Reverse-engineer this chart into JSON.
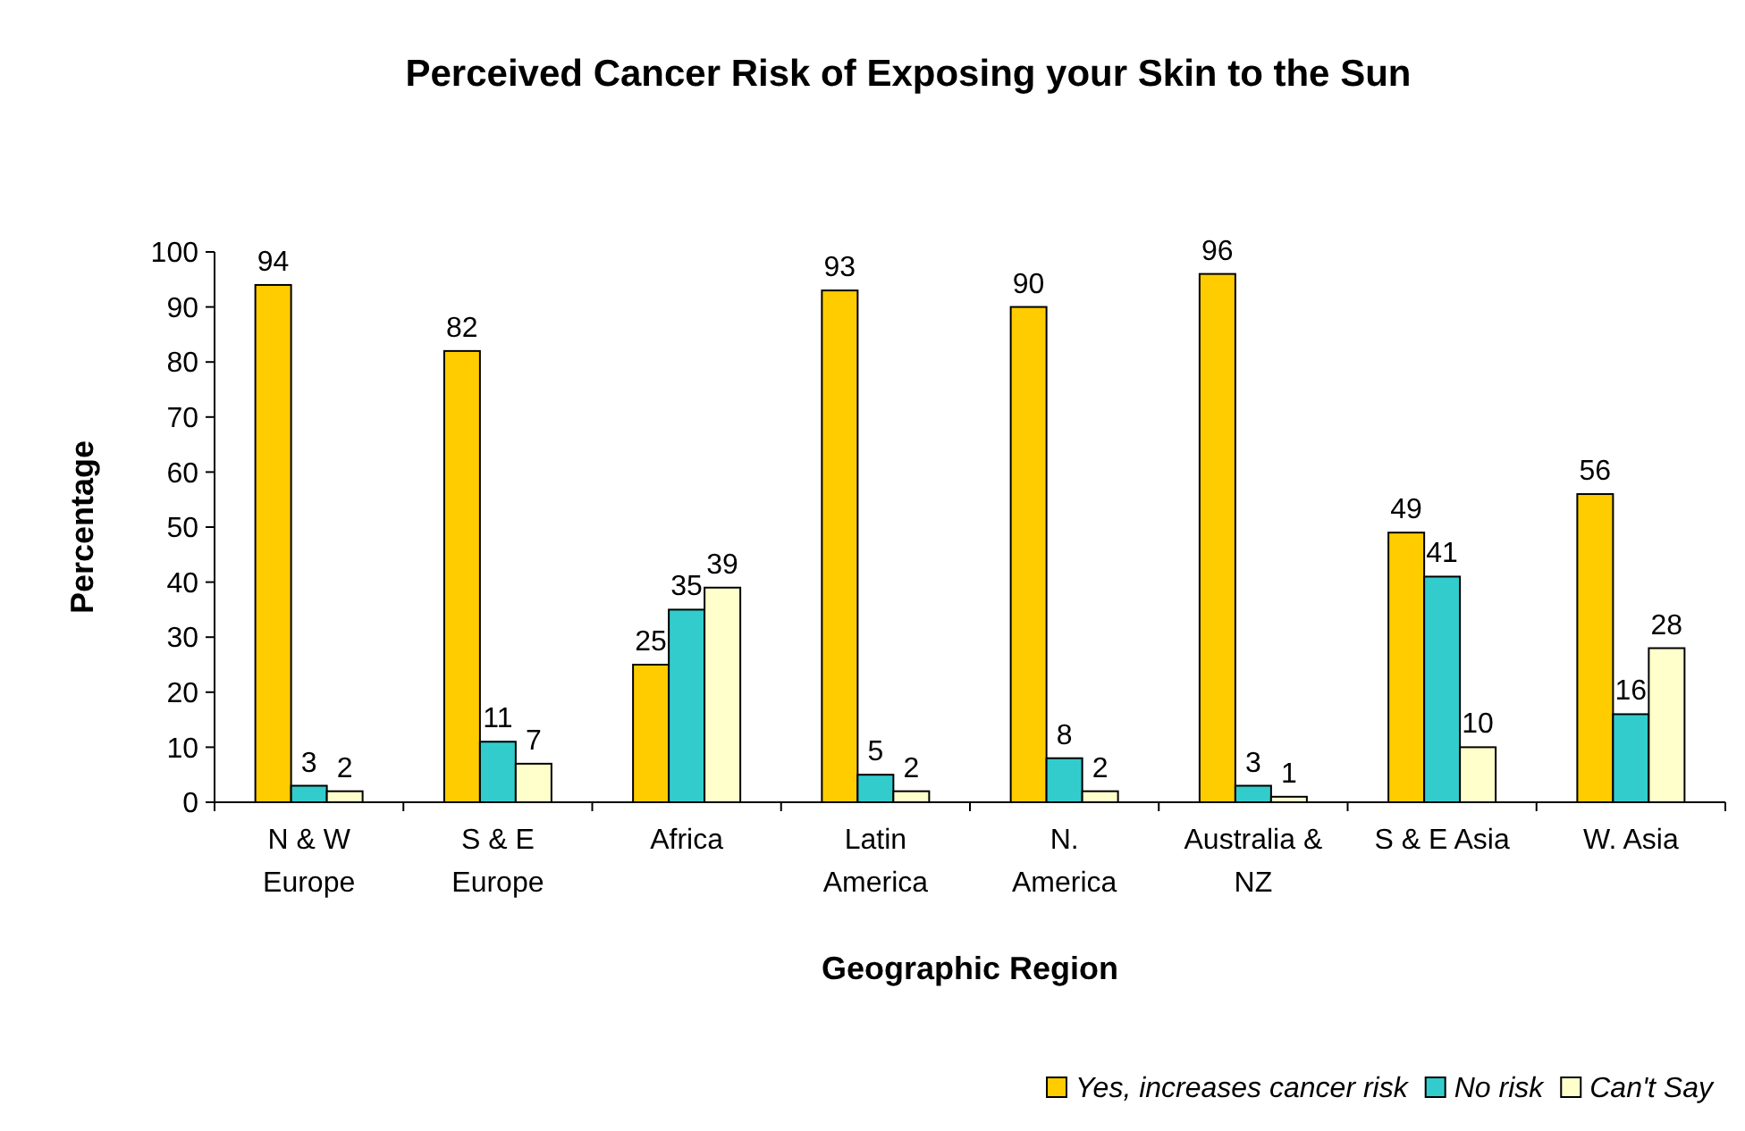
{
  "chart_data": {
    "type": "bar",
    "title": "Perceived Cancer Risk of Exposing your Skin to the Sun",
    "xlabel": "Geographic Region",
    "ylabel": "Percentage",
    "categories": [
      "N & W Europe",
      "S & E Europe",
      "Africa",
      "Latin America",
      "N. America",
      "Australia & NZ",
      "S & E Asia",
      "W. Asia"
    ],
    "series": [
      {
        "name": "Yes, increases cancer risk",
        "color": "#ffcc00",
        "values": [
          94,
          82,
          25,
          93,
          90,
          96,
          49,
          56
        ]
      },
      {
        "name": "No risk",
        "color": "#33cccc",
        "values": [
          3,
          11,
          35,
          5,
          8,
          3,
          41,
          16
        ]
      },
      {
        "name": "Can't Say",
        "color": "#ffffcc",
        "values": [
          2,
          7,
          39,
          2,
          2,
          1,
          10,
          28
        ]
      }
    ],
    "ylim": [
      0,
      100
    ],
    "yticks": [
      0,
      10,
      20,
      30,
      40,
      50,
      60,
      70,
      80,
      90,
      100
    ],
    "data_labels": true,
    "legend": "bottom right",
    "grid": false
  }
}
